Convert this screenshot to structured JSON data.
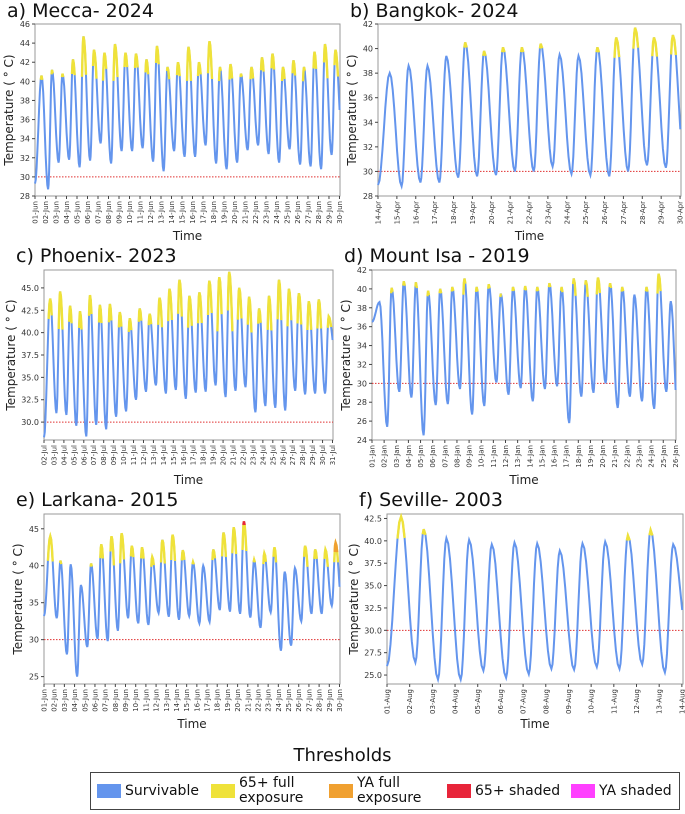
{
  "colors": {
    "survivable": "#6495ED",
    "full65": "#EFE23A",
    "fullYA": "#F0A030",
    "shaded65": "#E8253A",
    "shadedYA": "#FF40FF",
    "reference": "#E03030"
  },
  "legend": {
    "title": "Thresholds",
    "items": [
      {
        "label": "Survivable",
        "color": "#6495ED"
      },
      {
        "label": "65+ full exposure",
        "color": "#EFE23A"
      },
      {
        "label": "YA full exposure",
        "color": "#F0A030"
      },
      {
        "label": "65+ shaded",
        "color": "#E8253A"
      },
      {
        "label": "YA shaded",
        "color": "#FF40FF"
      }
    ]
  },
  "chart_data": [
    {
      "type": "line",
      "title": "a) Mecca- 2024",
      "xlabel": "Time",
      "ylabel": "Temperature ( ° C)",
      "ylim": [
        28,
        46
      ],
      "yticks": [
        "28",
        "30",
        "32",
        "34",
        "36",
        "38",
        "40",
        "42",
        "44",
        "46"
      ],
      "reference_line": 30,
      "xticks": [
        "01-Jun",
        "02-Jun",
        "03-Jun",
        "04-Jun",
        "05-Jun",
        "06-Jun",
        "07-Jun",
        "08-Jun",
        "09-Jun",
        "10-Jun",
        "11-Jun",
        "12-Jun",
        "13-Jun",
        "14-Jun",
        "15-Jun",
        "16-Jun",
        "17-Jun",
        "18-Jun",
        "19-Jun",
        "20-Jun",
        "21-Jun",
        "22-Jun",
        "23-Jun",
        "24-Jun",
        "25-Jun",
        "26-Jun",
        "27-Jun",
        "28-Jun",
        "29-Jun",
        "30-Jun"
      ],
      "daily_min": [
        29.3,
        28.7,
        31.5,
        31.8,
        31.0,
        31.7,
        33.5,
        31.4,
        32.7,
        32.7,
        33.0,
        31.6,
        30.6,
        32.7,
        32.1,
        32.1,
        33.3,
        31.4,
        30.8,
        31.5,
        32.8,
        33.3,
        32.4,
        31.5,
        32.9,
        31.3,
        31.1,
        30.8,
        32.3,
        34.2
      ],
      "daily_max": [
        40.6,
        41.2,
        40.8,
        42.3,
        44.7,
        43.3,
        43.0,
        43.9,
        43.0,
        42.9,
        42.3,
        43.7,
        41.5,
        42.0,
        43.6,
        42.0,
        44.2,
        41.5,
        41.8,
        40.8,
        41.5,
        42.5,
        42.9,
        41.5,
        42.2,
        41.5,
        43.1,
        43.9,
        43.3,
        36.0
      ]
    },
    {
      "type": "line",
      "title": "b) Bangkok- 2024",
      "xlabel": "Time",
      "ylabel": "Temperature ( ° C)",
      "ylim": [
        28,
        42
      ],
      "yticks": [
        "28",
        "30",
        "32",
        "34",
        "36",
        "38",
        "40",
        "42"
      ],
      "reference_line": 30,
      "xticks": [
        "14-Apr",
        "15-Apr",
        "16-Apr",
        "17-Apr",
        "18-Apr",
        "19-Apr",
        "20-Apr",
        "21-Apr",
        "22-Apr",
        "23-Apr",
        "24-Apr",
        "25-Apr",
        "26-Apr",
        "27-Apr",
        "28-Apr",
        "29-Apr",
        "30-Apr"
      ],
      "daily_min": [
        28.9,
        28.8,
        29.1,
        29.1,
        29.5,
        29.6,
        29.7,
        30.0,
        30.0,
        30.4,
        29.8,
        29.7,
        29.6,
        30.0,
        30.5,
        30.3,
        30.0
      ],
      "daily_max": [
        38.0,
        38.6,
        38.6,
        39.4,
        40.5,
        39.8,
        40.1,
        40.1,
        40.4,
        39.5,
        39.4,
        40.1,
        40.9,
        41.7,
        40.9,
        41.1,
        31.0
      ]
    },
    {
      "type": "line",
      "title": "c) Phoenix- 2023",
      "xlabel": "Time",
      "ylabel": "Temperature ( ° C)",
      "ylim": [
        28,
        47
      ],
      "yticks": [
        "30.0",
        "32.5",
        "35.0",
        "37.5",
        "40.0",
        "42.5",
        "45.0"
      ],
      "reference_line": 30,
      "xticks": [
        "02-Jul",
        "03-Jul",
        "04-Jul",
        "05-Jul",
        "06-Jul",
        "07-Jul",
        "08-Jul",
        "09-Jul",
        "10-Jul",
        "11-Jul",
        "12-Jul",
        "13-Jul",
        "14-Jul",
        "15-Jul",
        "16-Jul",
        "17-Jul",
        "18-Jul",
        "19-Jul",
        "20-Jul",
        "21-Jul",
        "22-Jul",
        "23-Jul",
        "24-Jul",
        "25-Jul",
        "26-Jul",
        "27-Jul",
        "28-Jul",
        "29-Jul",
        "30-Jul",
        "31-Jul"
      ],
      "daily_min": [
        28.3,
        31.0,
        30.8,
        29.6,
        28.4,
        29.7,
        29.2,
        30.6,
        31.2,
        32.5,
        33.4,
        34.1,
        33.2,
        33.6,
        32.6,
        33.3,
        33.4,
        34.1,
        32.8,
        33.5,
        33.9,
        31.1,
        31.8,
        31.6,
        31.3,
        33.5,
        33.1,
        33.2,
        33.2,
        38.0
      ],
      "daily_max": [
        43.8,
        44.6,
        43.0,
        42.4,
        44.2,
        43.1,
        43.2,
        42.3,
        41.6,
        42.7,
        42.1,
        43.9,
        44.9,
        45.9,
        44.1,
        44.5,
        45.8,
        46.2,
        46.8,
        45.0,
        44.0,
        42.7,
        44.1,
        45.9,
        44.9,
        44.4,
        43.5,
        43.7,
        41.8,
        41.8
      ]
    },
    {
      "type": "line",
      "title": "d) Mount Isa - 2019",
      "xlabel": "Time",
      "ylabel": "Temperature ( ° C)",
      "ylim": [
        24,
        42
      ],
      "yticks": [
        "24",
        "26",
        "28",
        "30",
        "32",
        "34",
        "36",
        "38",
        "40",
        "42"
      ],
      "reference_line": 30,
      "xticks": [
        "01-Jan",
        "02-Jan",
        "03-Jan",
        "04-Jan",
        "05-Jan",
        "06-Jan",
        "07-Jan",
        "08-Jan",
        "09-Jan",
        "10-Jan",
        "11-Jan",
        "12-Jan",
        "13-Jan",
        "14-Jan",
        "15-Jan",
        "16-Jan",
        "17-Jan",
        "18-Jan",
        "19-Jan",
        "20-Jan",
        "21-Jan",
        "22-Jan",
        "23-Jan",
        "24-Jan",
        "25-Jan",
        "26-Jan"
      ],
      "daily_min": [
        36.5,
        25.4,
        29.1,
        28.5,
        24.5,
        27.7,
        27.8,
        29.4,
        26.7,
        27.6,
        30.1,
        28.8,
        29.5,
        28.1,
        29.4,
        29.7,
        25.8,
        28.6,
        29.0,
        30.0,
        27.4,
        28.6,
        28.1,
        27.3,
        29.1,
        25.1
      ],
      "daily_max": [
        38.6,
        40.1,
        40.8,
        40.7,
        39.8,
        40.0,
        40.2,
        41.1,
        40.2,
        40.5,
        39.5,
        40.2,
        40.3,
        40.2,
        40.6,
        40.2,
        41.1,
        40.9,
        41.2,
        40.6,
        40.2,
        39.4,
        40.2,
        41.6,
        38.7,
        31.0
      ]
    },
    {
      "type": "line",
      "title": "e) Larkana- 2015",
      "xlabel": "Time",
      "ylabel": "Temperature ( ° C)",
      "ylim": [
        24,
        47
      ],
      "yticks": [
        "25",
        "30",
        "35",
        "40",
        "45"
      ],
      "reference_line": 30,
      "xticks": [
        "01-Jun",
        "02-Jun",
        "03-Jun",
        "04-Jun",
        "05-Jun",
        "06-Jun",
        "07-Jun",
        "08-Jun",
        "09-Jun",
        "10-Jun",
        "11-Jun",
        "12-Jun",
        "13-Jun",
        "14-Jun",
        "15-Jun",
        "16-Jun",
        "17-Jun",
        "18-Jun",
        "19-Jun",
        "20-Jun",
        "21-Jun",
        "22-Jun",
        "23-Jun",
        "24-Jun",
        "25-Jun",
        "26-Jun",
        "27-Jun",
        "28-Jun",
        "29-Jun",
        "30-Jun"
      ],
      "daily_min": [
        33.2,
        32.9,
        28.0,
        25.0,
        29.0,
        30.1,
        29.8,
        31.2,
        32.9,
        32.2,
        32.0,
        33.6,
        33.1,
        32.7,
        33.2,
        32.2,
        32.4,
        34.0,
        33.8,
        33.5,
        33.0,
        31.6,
        33.7,
        28.5,
        29.2,
        32.5,
        33.5,
        33.5,
        34.6,
        34.5
      ],
      "daily_max": [
        44.0,
        40.7,
        40.2,
        37.4,
        40.3,
        42.9,
        44.0,
        44.4,
        42.7,
        42.5,
        41.2,
        43.5,
        44.2,
        42.1,
        40.5,
        40.0,
        42.2,
        44.5,
        45.2,
        46.0,
        40.8,
        41.7,
        42.5,
        39.2,
        39.7,
        42.7,
        42.2,
        42.2,
        43.1,
        37.5
      ]
    },
    {
      "type": "line",
      "title": "f) Seville- 2003",
      "xlabel": "Time",
      "ylabel": "Temperature ( ° C)",
      "ylim": [
        24,
        43
      ],
      "yticks": [
        "25.0",
        "27.5",
        "30.0",
        "32.5",
        "35.0",
        "37.5",
        "40.0",
        "42.5"
      ],
      "reference_line": 30,
      "xticks": [
        "01-Aug",
        "02-Aug",
        "03-Aug",
        "04-Aug",
        "05-Aug",
        "06-Aug",
        "07-Aug",
        "08-Aug",
        "09-Aug",
        "10-Aug",
        "11-Aug",
        "12-Aug",
        "13-Aug",
        "14-Aug"
      ],
      "daily_min": [
        26.0,
        26.4,
        24.5,
        24.5,
        25.5,
        24.7,
        25.1,
        25.7,
        25.6,
        25.9,
        25.7,
        26.2,
        25.3,
        29.0
      ],
      "daily_max": [
        42.7,
        41.3,
        40.3,
        40.1,
        39.6,
        39.8,
        39.7,
        38.9,
        39.7,
        39.9,
        40.6,
        41.2,
        39.6,
        30.0
      ]
    }
  ]
}
